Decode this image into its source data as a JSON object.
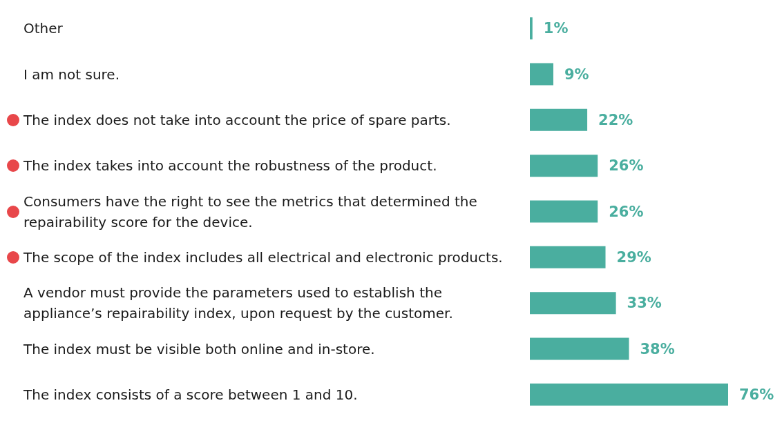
{
  "chart_data": {
    "type": "bar",
    "orientation": "horizontal",
    "categories": [
      "Other",
      "I am not sure.",
      "The index does not take into account the price of spare parts.",
      "The index takes into account the robustness of the product.",
      "Consumers have the right to see the metrics that determined the repairability score for the device.",
      "The scope of the index includes all electrical and electronic products.",
      "A vendor must provide the parameters used to establish the appliance’s repairability index, upon request by the customer.",
      "The index must be visible both online and in-store.",
      "The index consists of a score between 1 and 10."
    ],
    "values": [
      1,
      9,
      22,
      26,
      26,
      29,
      33,
      38,
      76
    ],
    "value_labels": [
      "1%",
      "9%",
      "22%",
      "26%",
      "26%",
      "29%",
      "33%",
      "38%",
      "76%"
    ],
    "color": "#4aae9f"
  }
}
